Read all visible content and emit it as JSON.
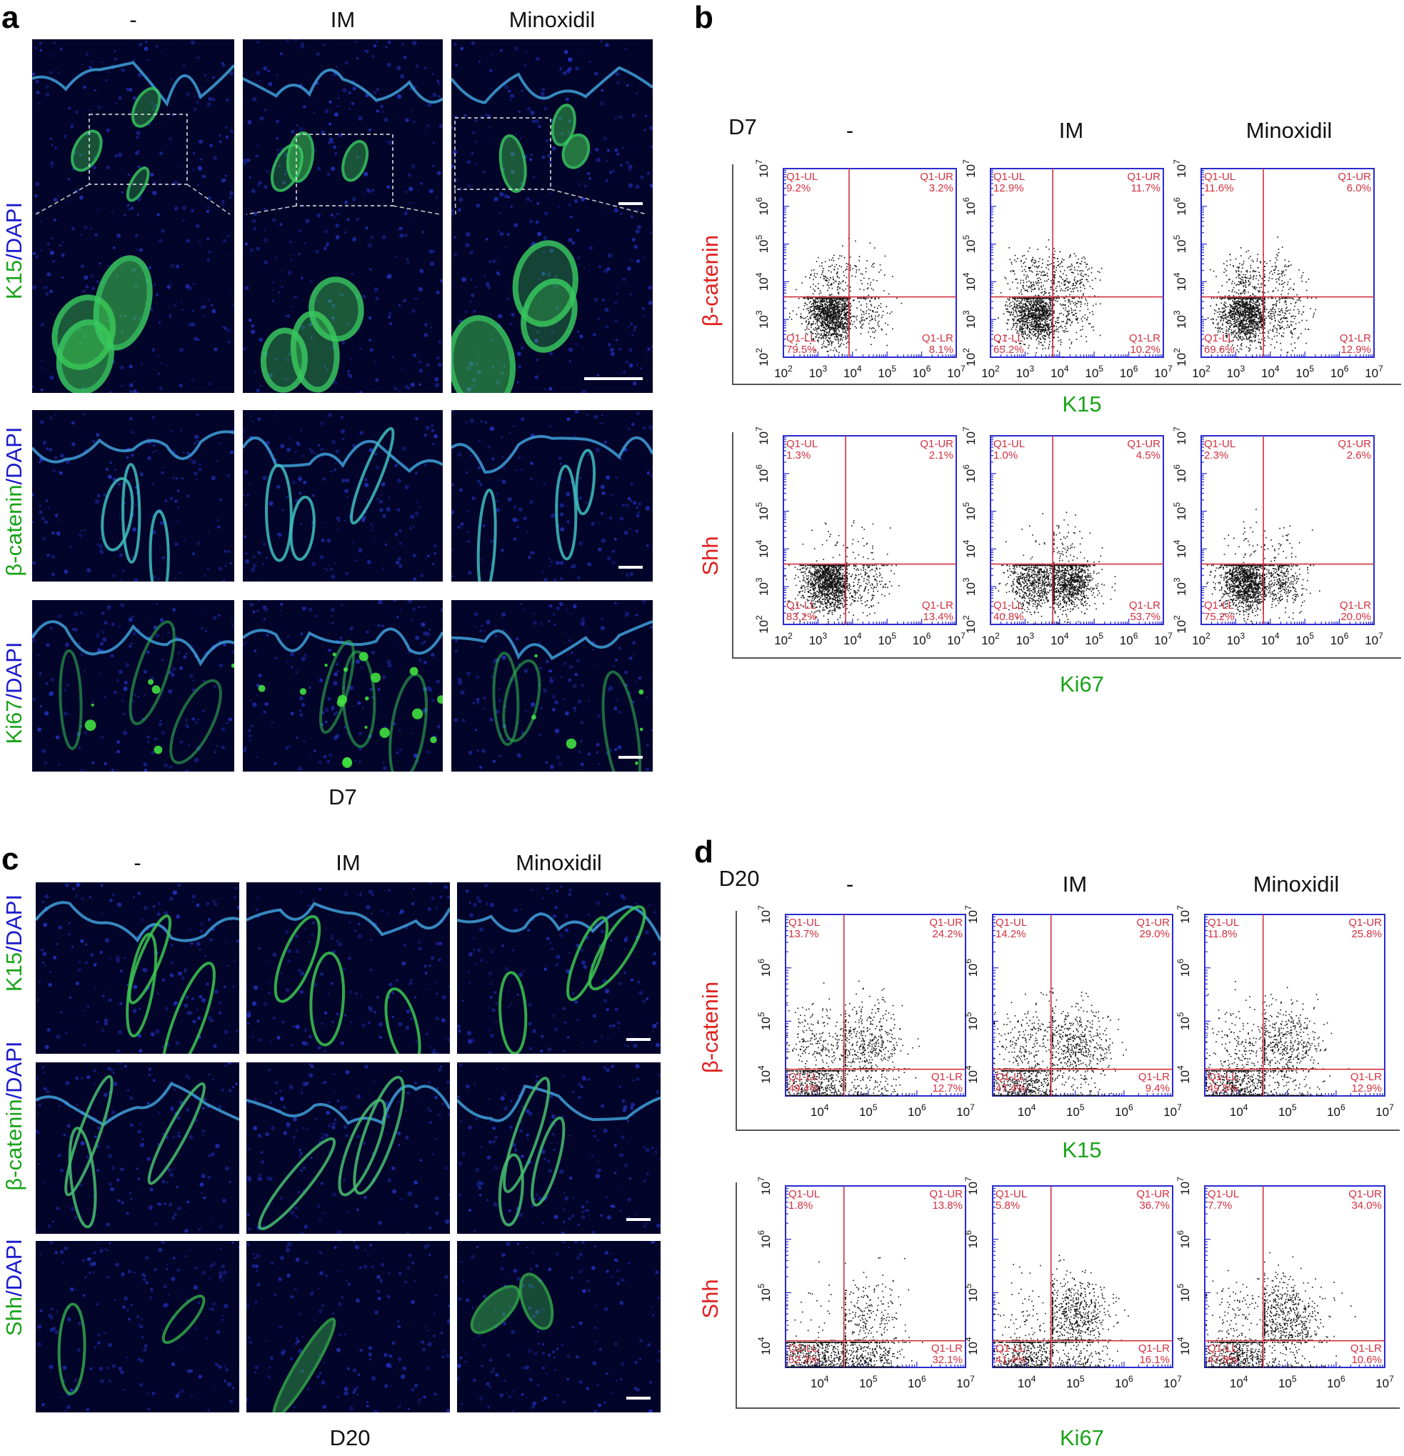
{
  "panels": {
    "a": {
      "letter": "a",
      "columns": [
        "-",
        "IM",
        "Minoxidil"
      ],
      "rows": [
        {
          "marker": "K15",
          "sep": "/",
          "dapi": "DAPI"
        },
        {
          "marker": "β-catenin",
          "sep": "/",
          "dapi": "DAPI"
        },
        {
          "marker": "Ki67",
          "sep": "/",
          "dapi": "DAPI"
        }
      ],
      "day": "D7"
    },
    "b": {
      "letter": "b",
      "day": "D7",
      "columns": [
        "-",
        "IM",
        "Minoxidil"
      ],
      "rows": [
        {
          "ylabel": "β-catenin",
          "xlabel": "K15"
        },
        {
          "ylabel": "Shh",
          "xlabel": "Ki67"
        }
      ]
    },
    "c": {
      "letter": "c",
      "columns": [
        "-",
        "IM",
        "Minoxidil"
      ],
      "rows": [
        {
          "marker": "K15",
          "sep": "/",
          "dapi": "DAPI"
        },
        {
          "marker": "β-catenin",
          "sep": "/",
          "dapi": "DAPI"
        },
        {
          "marker": "Shh",
          "sep": "/",
          "dapi": "DAPI"
        }
      ],
      "day": "D20"
    },
    "d": {
      "letter": "d",
      "day": "D20",
      "columns": [
        "-",
        "IM",
        "Minoxidil"
      ],
      "rows": [
        {
          "ylabel": "β-catenin",
          "xlabel": "K15"
        },
        {
          "ylabel": "Shh",
          "xlabel": "Ki67"
        }
      ]
    }
  },
  "colors": {
    "green": "#1aa31a",
    "blue": "#1a1acc",
    "red": "#e02020",
    "gate": "#d23040",
    "axis": "#2a2ad0"
  },
  "chart_data": [
    {
      "panel": "b",
      "row": "top",
      "condition": "-",
      "type": "scatter",
      "xscale": "log",
      "yscale": "log",
      "xticks": [
        2,
        3,
        4,
        5,
        6,
        7
      ],
      "yticks": [
        2,
        3,
        4,
        5,
        6,
        7
      ],
      "quadrants": {
        "UL": {
          "name": "Q1-UL",
          "value": "9.2%"
        },
        "UR": {
          "name": "Q1-UR",
          "value": "3.2%"
        },
        "LR": {
          "name": "Q1-LR",
          "value": "8.1%"
        },
        "LL": {
          "name": "Q1-LL",
          "value": "79.5%"
        }
      },
      "gate_x": 3.9,
      "gate_y": 3.6
    },
    {
      "panel": "b",
      "row": "top",
      "condition": "IM",
      "type": "scatter",
      "xscale": "log",
      "yscale": "log",
      "xticks": [
        2,
        3,
        4,
        5,
        6,
        7
      ],
      "yticks": [
        2,
        3,
        4,
        5,
        6,
        7
      ],
      "quadrants": {
        "UL": {
          "name": "Q1-UL",
          "value": "12.9%"
        },
        "UR": {
          "name": "Q1-UR",
          "value": "11.7%"
        },
        "LR": {
          "name": "Q1-LR",
          "value": "10.2%"
        },
        "LL": {
          "name": "Q1-LL",
          "value": "65.2%"
        }
      },
      "gate_x": 3.8,
      "gate_y": 3.6
    },
    {
      "panel": "b",
      "row": "top",
      "condition": "Minoxidil",
      "type": "scatter",
      "xscale": "log",
      "yscale": "log",
      "xticks": [
        2,
        3,
        4,
        5,
        6,
        7
      ],
      "yticks": [
        2,
        3,
        4,
        5,
        6,
        7
      ],
      "quadrants": {
        "UL": {
          "name": "Q1-UL",
          "value": "11.6%"
        },
        "UR": {
          "name": "Q1-UR",
          "value": "6.0%"
        },
        "LR": {
          "name": "Q1-LR",
          "value": "12.9%"
        },
        "LL": {
          "name": "Q1-LL",
          "value": "69.6%"
        }
      },
      "gate_x": 3.8,
      "gate_y": 3.6
    },
    {
      "panel": "b",
      "row": "bottom",
      "condition": "-",
      "type": "scatter",
      "xscale": "log",
      "yscale": "log",
      "xticks": [
        2,
        3,
        4,
        5,
        6,
        7
      ],
      "yticks": [
        2,
        3,
        4,
        5,
        6,
        7
      ],
      "quadrants": {
        "UL": {
          "name": "Q1-UL",
          "value": "1.3%"
        },
        "UR": {
          "name": "Q1-UR",
          "value": "2.1%"
        },
        "LR": {
          "name": "Q1-LR",
          "value": "13.4%"
        },
        "LL": {
          "name": "Q1-LL",
          "value": "83.2%"
        }
      },
      "gate_x": 3.8,
      "gate_y": 3.6
    },
    {
      "panel": "b",
      "row": "bottom",
      "condition": "IM",
      "type": "scatter",
      "xscale": "log",
      "yscale": "log",
      "xticks": [
        2,
        3,
        4,
        5,
        6,
        7
      ],
      "yticks": [
        2,
        3,
        4,
        5,
        6,
        7
      ],
      "quadrants": {
        "UL": {
          "name": "Q1-UL",
          "value": "1.0%"
        },
        "UR": {
          "name": "Q1-UR",
          "value": "4.5%"
        },
        "LR": {
          "name": "Q1-LR",
          "value": "53.7%"
        },
        "LL": {
          "name": "Q1-LL",
          "value": "40.8%"
        }
      },
      "gate_x": 3.8,
      "gate_y": 3.6
    },
    {
      "panel": "b",
      "row": "bottom",
      "condition": "Minoxidil",
      "type": "scatter",
      "xscale": "log",
      "yscale": "log",
      "xticks": [
        2,
        3,
        4,
        5,
        6,
        7
      ],
      "yticks": [
        2,
        3,
        4,
        5,
        6,
        7
      ],
      "quadrants": {
        "UL": {
          "name": "Q1-UL",
          "value": "2.3%"
        },
        "UR": {
          "name": "Q1-UR",
          "value": "2.6%"
        },
        "LR": {
          "name": "Q1-LR",
          "value": "20.0%"
        },
        "LL": {
          "name": "Q1-LL",
          "value": "75.2%"
        }
      },
      "gate_x": 3.8,
      "gate_y": 3.6
    },
    {
      "panel": "d",
      "row": "top",
      "condition": "-",
      "type": "scatter",
      "xscale": "log",
      "yscale": "log",
      "xticks": [
        4,
        5,
        6,
        7
      ],
      "yticks": [
        4,
        5,
        6,
        7
      ],
      "xmin": 3.3,
      "ymin": 3.6,
      "quadrants": {
        "UL": {
          "name": "Q1-UL",
          "value": "13.7%"
        },
        "UR": {
          "name": "Q1-UR",
          "value": "24.2%"
        },
        "LR": {
          "name": "Q1-LR",
          "value": "12.7%"
        },
        "LL": {
          "name": "Q1-LL",
          "value": "49.4%"
        }
      },
      "gate_x": 4.5,
      "gate_y": 4.1
    },
    {
      "panel": "d",
      "row": "top",
      "condition": "IM",
      "type": "scatter",
      "xscale": "log",
      "yscale": "log",
      "xticks": [
        4,
        5,
        6,
        7
      ],
      "yticks": [
        4,
        5,
        6,
        7
      ],
      "xmin": 3.3,
      "ymin": 3.6,
      "quadrants": {
        "UL": {
          "name": "Q1-UL",
          "value": "14.2%"
        },
        "UR": {
          "name": "Q1-UR",
          "value": "29.0%"
        },
        "LR": {
          "name": "Q1-LR",
          "value": "9.4%"
        },
        "LL": {
          "name": "Q1-LL",
          "value": "47.4%"
        }
      },
      "gate_x": 4.5,
      "gate_y": 4.1
    },
    {
      "panel": "d",
      "row": "top",
      "condition": "Minoxidil",
      "type": "scatter",
      "xscale": "log",
      "yscale": "log",
      "xticks": [
        4,
        5,
        6,
        7
      ],
      "yticks": [
        4,
        5,
        6,
        7
      ],
      "xmin": 3.3,
      "ymin": 3.6,
      "quadrants": {
        "UL": {
          "name": "Q1-UL",
          "value": "11.8%"
        },
        "UR": {
          "name": "Q1-UR",
          "value": "25.8%"
        },
        "LR": {
          "name": "Q1-LR",
          "value": "12.9%"
        },
        "LL": {
          "name": "Q1-LL",
          "value": "49.5%"
        }
      },
      "gate_x": 4.5,
      "gate_y": 4.1
    },
    {
      "panel": "d",
      "row": "bottom",
      "condition": "-",
      "type": "scatter",
      "xscale": "log",
      "yscale": "log",
      "xticks": [
        4,
        5,
        6,
        7
      ],
      "yticks": [
        4,
        5,
        6,
        7
      ],
      "xmin": 3.3,
      "ymin": 3.6,
      "quadrants": {
        "UL": {
          "name": "Q1-UL",
          "value": "1.8%"
        },
        "UR": {
          "name": "Q1-UR",
          "value": "13.8%"
        },
        "LR": {
          "name": "Q1-LR",
          "value": "32.1%"
        },
        "LL": {
          "name": "Q1-LL",
          "value": "52.3%"
        }
      },
      "gate_x": 4.5,
      "gate_y": 4.1
    },
    {
      "panel": "d",
      "row": "bottom",
      "condition": "IM",
      "type": "scatter",
      "xscale": "log",
      "yscale": "log",
      "xticks": [
        4,
        5,
        6,
        7
      ],
      "yticks": [
        4,
        5,
        6,
        7
      ],
      "xmin": 3.3,
      "ymin": 3.6,
      "quadrants": {
        "UL": {
          "name": "Q1-UL",
          "value": "5.8%"
        },
        "UR": {
          "name": "Q1-UR",
          "value": "36.7%"
        },
        "LR": {
          "name": "Q1-LR",
          "value": "16.1%"
        },
        "LL": {
          "name": "Q1-LL",
          "value": "41.4%"
        }
      },
      "gate_x": 4.5,
      "gate_y": 4.1
    },
    {
      "panel": "d",
      "row": "bottom",
      "condition": "Minoxidil",
      "type": "scatter",
      "xscale": "log",
      "yscale": "log",
      "xticks": [
        4,
        5,
        6,
        7
      ],
      "yticks": [
        4,
        5,
        6,
        7
      ],
      "xmin": 3.3,
      "ymin": 3.6,
      "quadrants": {
        "UL": {
          "name": "Q1-UL",
          "value": "7.7%"
        },
        "UR": {
          "name": "Q1-UR",
          "value": "34.0%"
        },
        "LR": {
          "name": "Q1-LR",
          "value": "10.6%"
        },
        "LL": {
          "name": "Q1-LL",
          "value": "47.8%"
        }
      },
      "gate_x": 4.5,
      "gate_y": 4.1
    }
  ]
}
